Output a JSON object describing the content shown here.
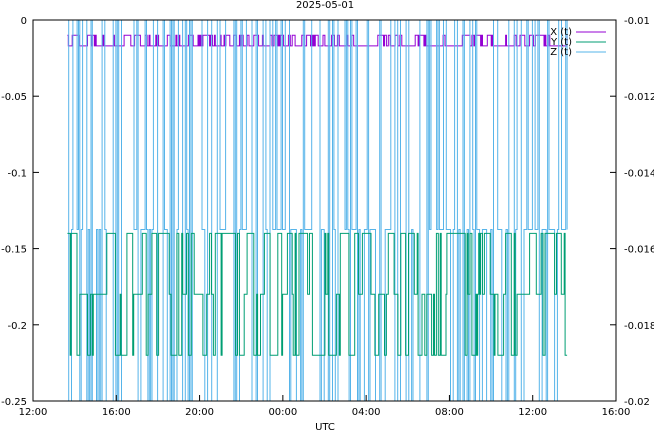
{
  "chart_data": {
    "type": "line",
    "title": "2025-05-01",
    "xlabel": "UTC",
    "ylabel": "",
    "y2label": "",
    "x_ticks": [
      "12:00",
      "16:00",
      "20:00",
      "00:00",
      "04:00",
      "08:00",
      "12:00",
      "16:00"
    ],
    "x_range_hours": [
      0,
      28
    ],
    "x_data_range_hours": [
      1.65,
      25.65
    ],
    "ylim": [
      -0.25,
      0
    ],
    "y_ticks": [
      "0",
      "-0.05",
      "-0.1",
      "-0.15",
      "-0.2",
      "-0.25"
    ],
    "y2lim": [
      -0.02,
      -0.01
    ],
    "y2_ticks": [
      "-0.01",
      "-0.012",
      "-0.014",
      "-0.016",
      "-0.018",
      "-0.02"
    ],
    "grid": false,
    "legend_position": "top-right",
    "series": [
      {
        "name": "X (t)",
        "axis": "y",
        "color": "#9400d3",
        "levels": [
          -0.01,
          -0.017
        ],
        "pattern": "two-level noise"
      },
      {
        "name": "Y (t)",
        "axis": "y",
        "color": "#009e73",
        "levels": [
          -0.14,
          -0.18,
          -0.22
        ],
        "pattern": "three-level noise"
      },
      {
        "name": "Z (t)",
        "axis": "y2",
        "color": "#56b4e9",
        "levels": [
          -0.01,
          -0.0155,
          -0.02
        ],
        "pattern": "dense oscillation"
      }
    ]
  }
}
